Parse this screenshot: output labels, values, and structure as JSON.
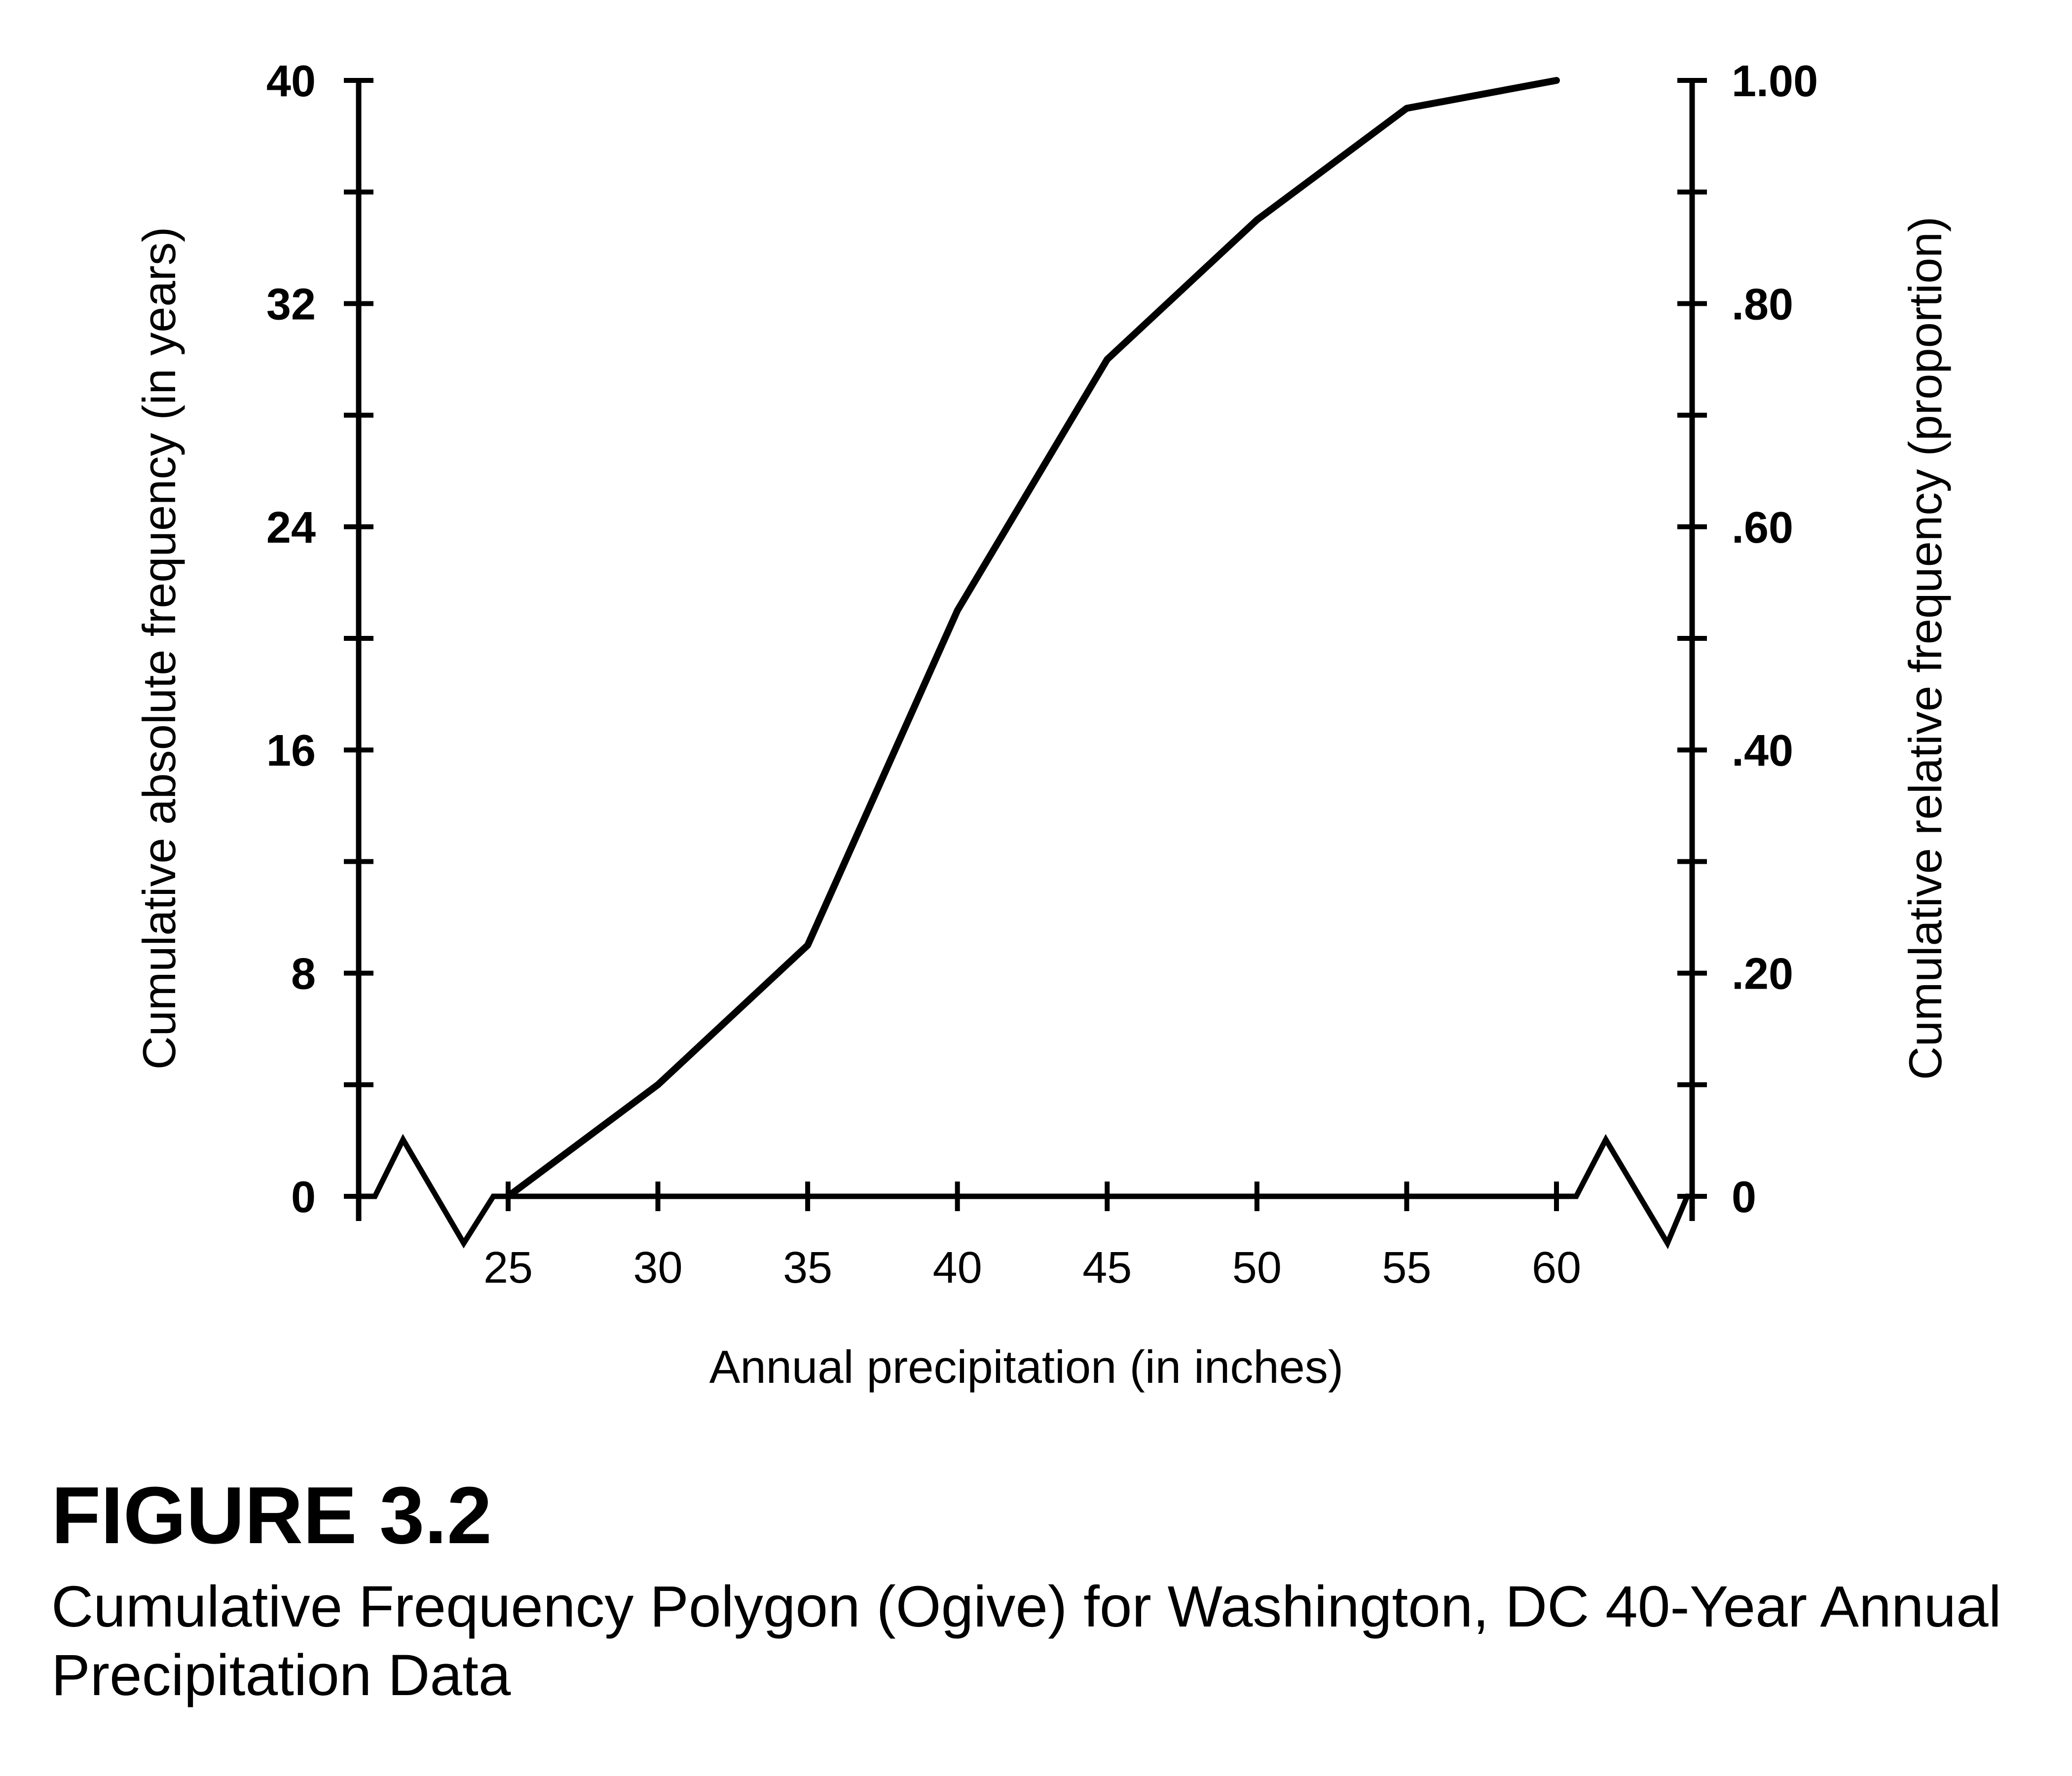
{
  "figure": {
    "number": "FIGURE 3.2",
    "title": "Cumulative Frequency Polygon (Ogive) for Washington, DC 40-Year Annual Precipitation Data"
  },
  "chart_data": {
    "type": "line",
    "xlabel": "Annual precipitation (in inches)",
    "ylabel": "Cumulative absolute frequency (in years)",
    "y2label": "Cumulative relative frequency (proportion)",
    "x_ticks": [
      "25",
      "30",
      "35",
      "40",
      "45",
      "50",
      "55",
      "60"
    ],
    "y_ticks": [
      "0",
      "8",
      "16",
      "24",
      "32",
      "40"
    ],
    "y2_ticks": [
      "0",
      ".20",
      ".40",
      ".60",
      ".80",
      "1.00"
    ],
    "xlim": [
      20,
      65
    ],
    "ylim": [
      0,
      40
    ],
    "y2lim": [
      0,
      1
    ],
    "axis_breaks": [
      "x-axis left of 25",
      "x-axis right of 60"
    ],
    "grid": false,
    "color": "#000000",
    "series": [
      {
        "x": [
          25,
          30,
          35,
          40,
          45,
          50,
          55,
          60
        ],
        "y": [
          0,
          4,
          9,
          21,
          30,
          35,
          39,
          40
        ]
      }
    ]
  }
}
